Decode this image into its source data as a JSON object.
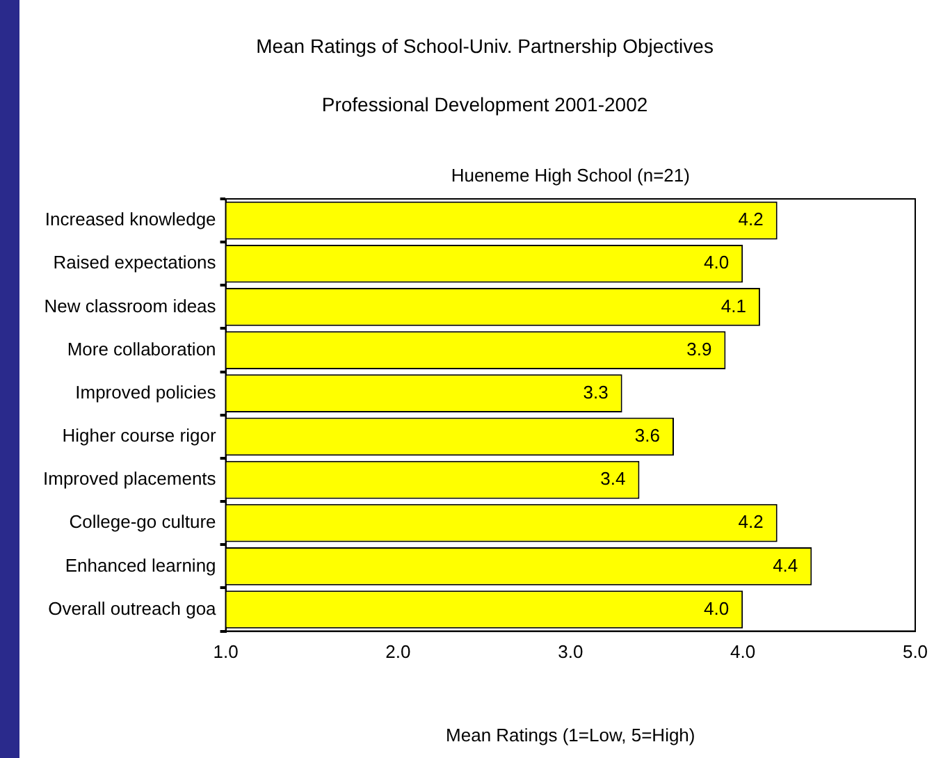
{
  "chart_data": {
    "type": "bar",
    "orientation": "horizontal",
    "title": "Mean Ratings of School-Univ. Partnership Objectives",
    "subtitle": "Professional Development 2001-2002",
    "annotations": [
      "Hueneme High School (n=21)"
    ],
    "xlabel": "Mean Ratings (1=Low, 5=High)",
    "categories": [
      "Increased knowledge",
      "Raised expectations",
      "New classroom ideas",
      "More collaboration",
      "Improved policies",
      "Higher course rigor",
      "Improved placements",
      "College-go culture",
      "Enhanced learning",
      "Overall outreach goa"
    ],
    "values": [
      4.2,
      4.0,
      4.1,
      3.9,
      3.3,
      3.6,
      3.4,
      4.2,
      4.4,
      4.0
    ],
    "color": "#ffff00",
    "xlim": [
      1,
      5
    ],
    "xticks": [
      {
        "value": 1,
        "label": "1.0"
      },
      {
        "value": 2,
        "label": "2.0"
      },
      {
        "value": 3,
        "label": "3.0"
      },
      {
        "value": 4,
        "label": "4.0"
      },
      {
        "value": 5,
        "label": "5.0"
      }
    ],
    "value_labels": [
      "4.2",
      "4.0",
      "4.1",
      "3.9",
      "3.3",
      "3.6",
      "3.4",
      "4.2",
      "4.4",
      "4.0"
    ],
    "legend": false
  }
}
